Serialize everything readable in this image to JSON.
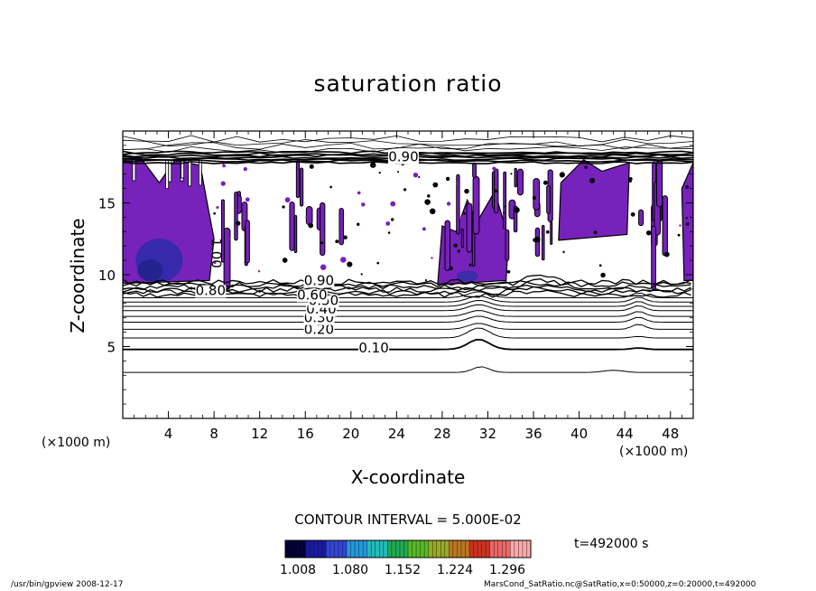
{
  "chart_data": {
    "type": "heatmap",
    "title": "saturation ratio",
    "xlabel": "X-coordinate",
    "ylabel": "Z-coordinate",
    "x_unit_label": "(×1000 m)",
    "xlim": [
      0,
      50
    ],
    "ylim": [
      0,
      20
    ],
    "x_ticks": [
      4,
      8,
      12,
      16,
      20,
      24,
      28,
      32,
      36,
      40,
      44,
      48
    ],
    "y_ticks": [
      5,
      10,
      15
    ],
    "contour_interval_text": "CONTOUR INTERVAL = 5.000E-02",
    "colorbar": {
      "tick_labels": [
        "1.008",
        "1.080",
        "1.152",
        "1.224",
        "1.296"
      ],
      "colors": [
        "#000033",
        "#1a1aa0",
        "#3344dd",
        "#2299dd",
        "#22bbbb",
        "#22aa55",
        "#55bb22",
        "#99aa22",
        "#bb7722",
        "#cc3322",
        "#ee6666",
        "#ffaaaa"
      ]
    },
    "contour_labels": [
      {
        "text": "0.10",
        "x": 22.0,
        "z": 4.9
      },
      {
        "text": "0.20",
        "x": 17.2,
        "z": 6.2
      },
      {
        "text": "0.30",
        "x": 17.2,
        "z": 7.0
      },
      {
        "text": "0.40",
        "x": 17.4,
        "z": 7.6
      },
      {
        "text": "0.50",
        "x": 17.6,
        "z": 8.2
      },
      {
        "text": "0.60",
        "x": 16.6,
        "z": 8.6
      },
      {
        "text": "0.80",
        "x": 7.7,
        "z": 8.9
      },
      {
        "text": "0.90",
        "x": 17.2,
        "z": 9.6
      },
      {
        "text": "1.00",
        "x": 8.2,
        "z": 11.5
      },
      {
        "text": "0.90",
        "x": 24.6,
        "z": 18.2
      }
    ],
    "supersaturated_color": "#7722bb",
    "max_region_color": "#2a2aa8"
  },
  "time_label": "t=492000 s",
  "footer_left": "/usr/bin/gpview  2008-12-17",
  "footer_right": "MarsCond_SatRatio.nc@SatRatio,x=0:50000,z=0:20000,t=492000"
}
